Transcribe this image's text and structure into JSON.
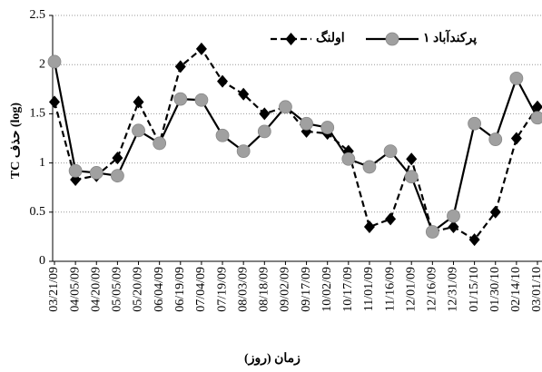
{
  "chart_data": {
    "type": "line",
    "y_label": "TC حذف (log)",
    "x_label": "زمان (روز)",
    "categories": [
      "03/21/09",
      "04/05/09",
      "04/20/09",
      "05/05/09",
      "05/20/09",
      "06/04/09",
      "06/19/09",
      "07/04/09",
      "07/19/09",
      "08/03/09",
      "08/18/09",
      "09/02/09",
      "09/17/09",
      "10/02/09",
      "10/17/09",
      "11/01/09",
      "11/16/09",
      "12/01/09",
      "12/16/09",
      "12/31/09",
      "01/15/10",
      "01/30/10",
      "02/14/10",
      "03/01/10"
    ],
    "series": [
      {
        "name": "اولنگ",
        "color": "#000000",
        "line_style": "dashed",
        "marker": "diamond",
        "marker_color": "#000000",
        "values": [
          1.62,
          0.83,
          0.87,
          1.05,
          1.62,
          1.2,
          1.98,
          2.16,
          1.83,
          1.7,
          1.5,
          1.57,
          1.32,
          1.3,
          1.12,
          0.35,
          0.43,
          1.04,
          0.3,
          0.35,
          0.22,
          0.5,
          1.25,
          1.57
        ]
      },
      {
        "name": "پرکندآباد ۱",
        "color": "#000000",
        "line_style": "solid",
        "marker": "circle",
        "marker_color": "#a0a0a0",
        "values": [
          2.03,
          0.92,
          0.9,
          0.87,
          1.33,
          1.2,
          1.65,
          1.64,
          1.28,
          1.12,
          1.32,
          1.57,
          1.4,
          1.36,
          1.04,
          0.96,
          1.12,
          0.86,
          0.3,
          0.46,
          1.4,
          1.24,
          1.86,
          1.46
        ]
      }
    ],
    "ylim": [
      0,
      2.5
    ],
    "yticks": [
      0,
      0.5,
      1,
      1.5,
      2,
      2.5
    ],
    "grid": true
  }
}
